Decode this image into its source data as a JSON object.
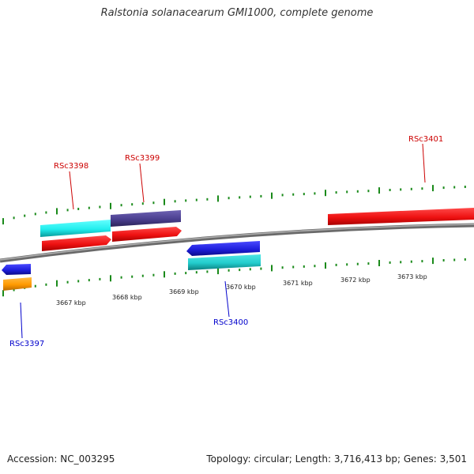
{
  "title": "Ralstonia solanacearum GMI1000, complete genome",
  "footer": {
    "accession": "Accession: NC_003295",
    "summary": "Topology: circular; Length: 3,716,413 bp; Genes: 3,501"
  },
  "colors": {
    "backbone": "#888888",
    "tick": "#1a8a1a",
    "forward_label": "#cc0000",
    "reverse_label": "#0000cc"
  },
  "ticks": {
    "labels": [
      "3667 kbp",
      "3668 kbp",
      "3669 kbp",
      "3670 kbp",
      "3671 kbp",
      "3672 kbp",
      "3673 kbp"
    ]
  },
  "genes": [
    {
      "name": "RSc3397",
      "strand": "reverse",
      "colors": [
        "#1f1fdd",
        "#ff9900"
      ]
    },
    {
      "name": "RSc3398",
      "strand": "forward",
      "colors": [
        "#22eeee",
        "#ee1111"
      ]
    },
    {
      "name": "RSc3399",
      "strand": "forward",
      "colors": [
        "#4a3f8f",
        "#ee1111"
      ]
    },
    {
      "name": "RSc3400",
      "strand": "reverse",
      "colors": [
        "#1f1fdd",
        "#22cccc"
      ]
    },
    {
      "name": "RSc3401",
      "strand": "forward",
      "colors": [
        "#ee1111"
      ]
    }
  ]
}
